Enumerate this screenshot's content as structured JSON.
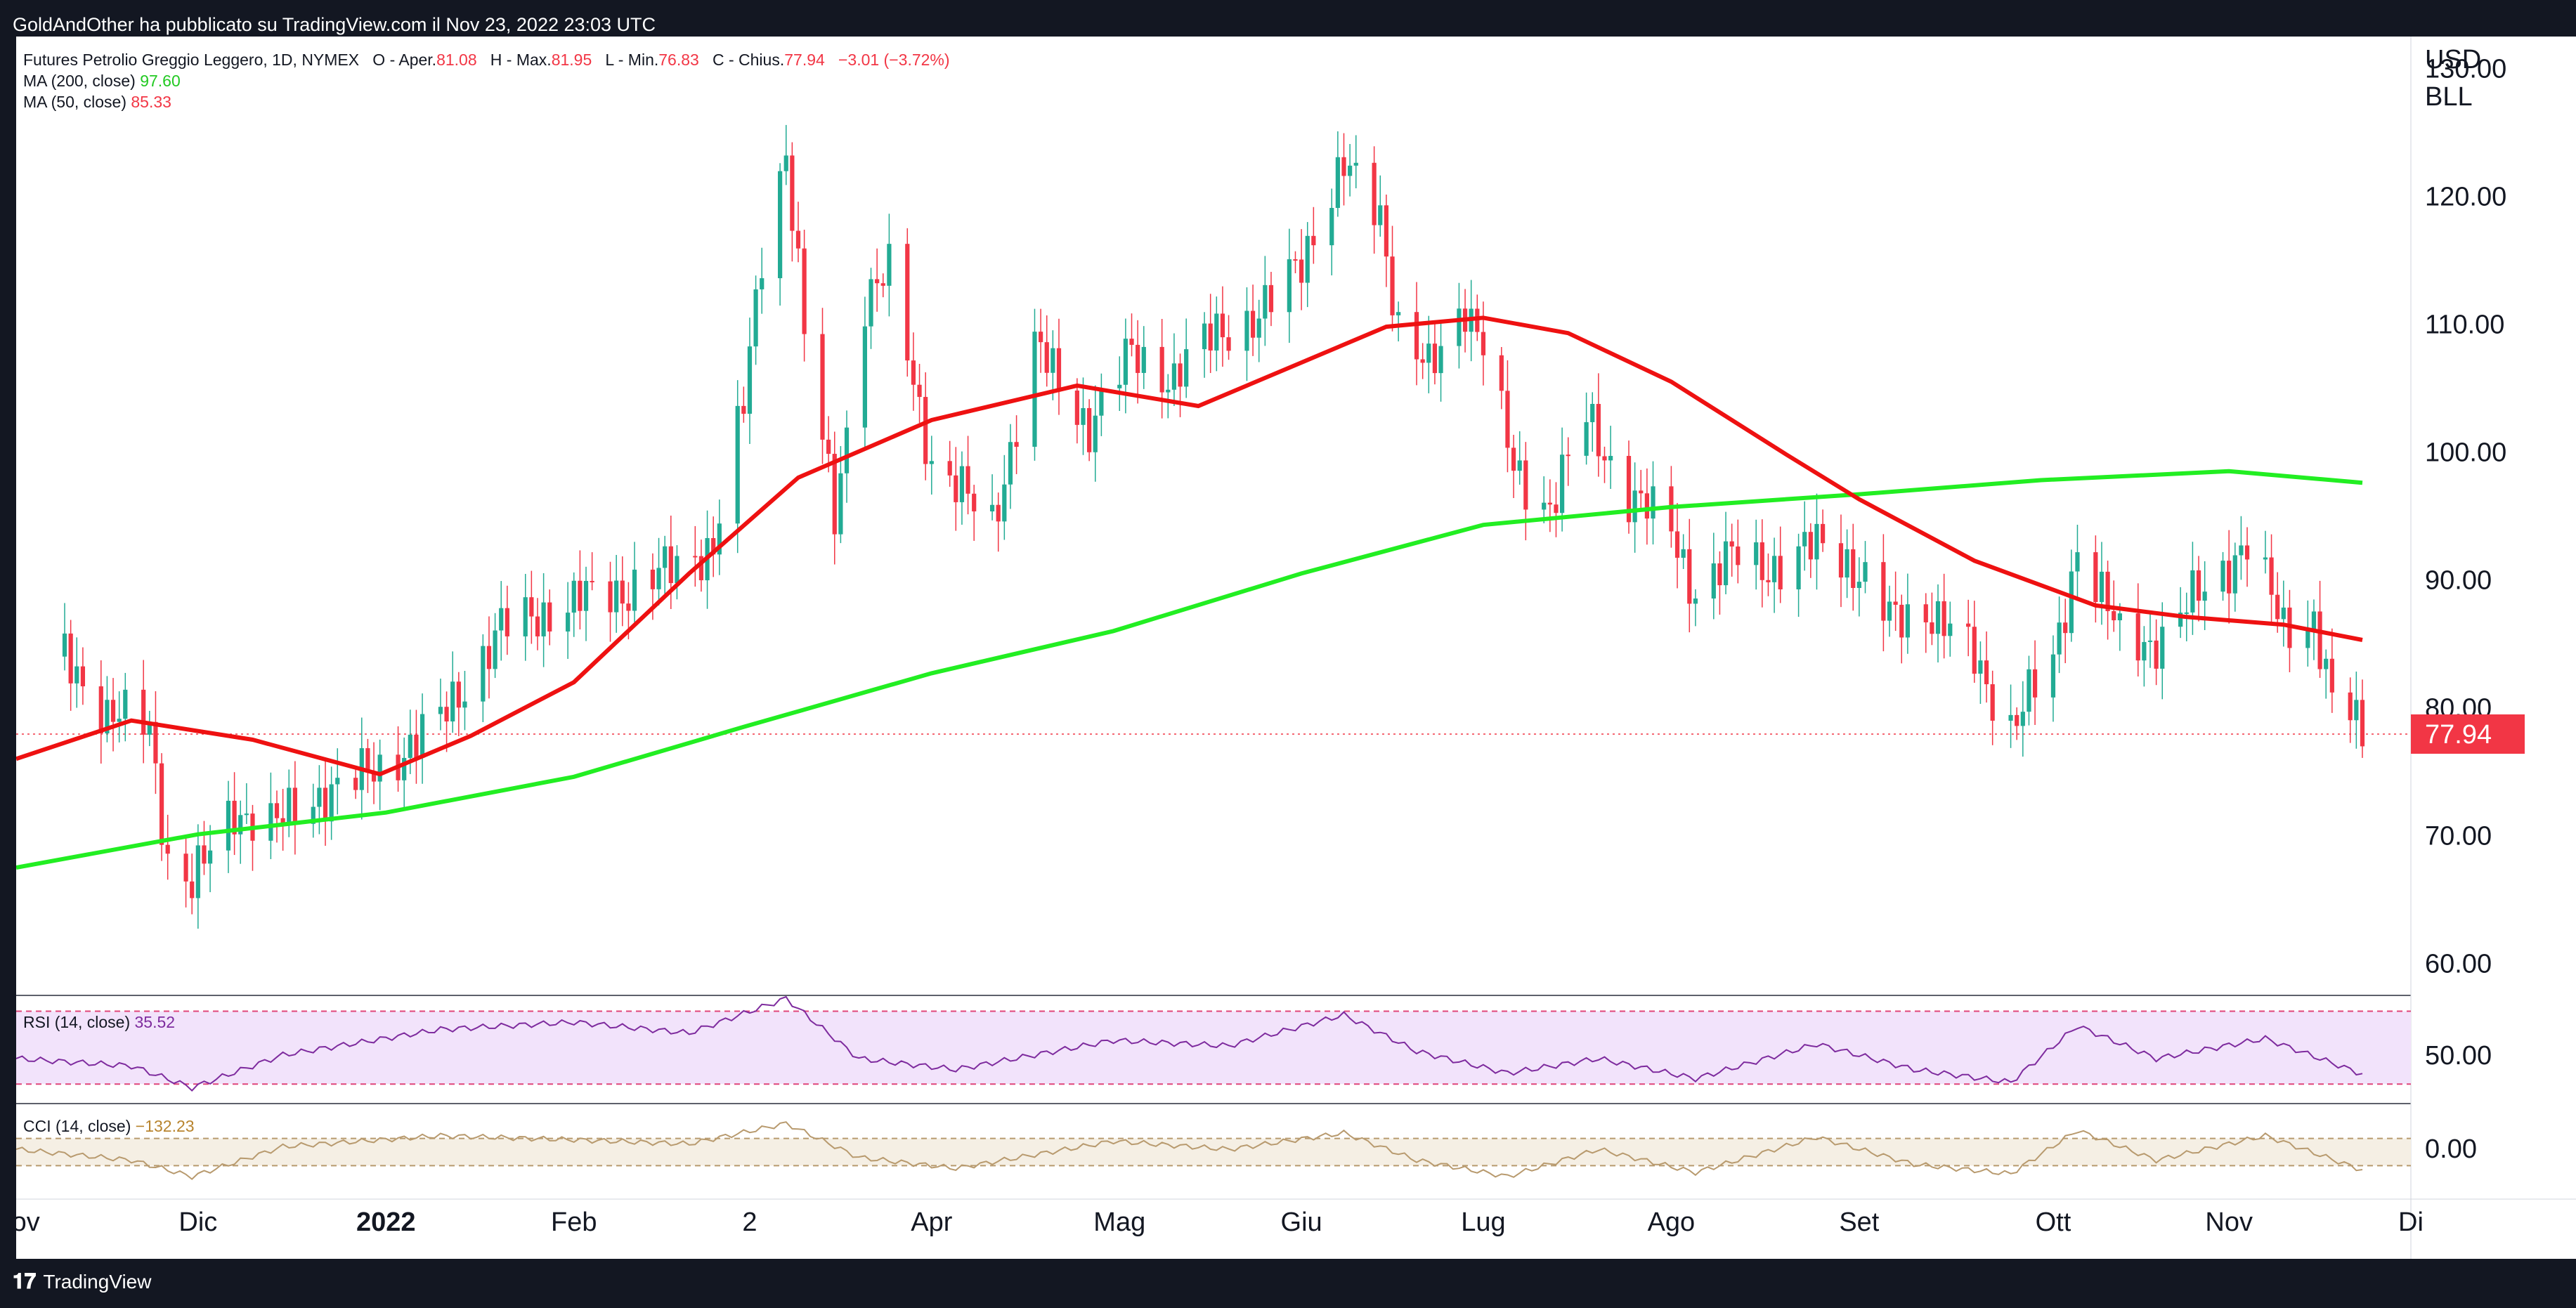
{
  "header": {
    "publish_line": "GoldAndOther ha pubblicato su TradingView.com il Nov 23, 2022 23:03 UTC"
  },
  "footer": {
    "brand": "TradingView",
    "logo_glyph": "𝟏𝟕"
  },
  "legend": {
    "symbol_line": "Futures Petrolio Greggio Leggero, 1D, NYMEX",
    "o_label": "O - Aper.",
    "o_value": "81.08",
    "h_label": "H - Max.",
    "h_value": "81.95",
    "l_label": "L - Min.",
    "l_value": "76.83",
    "c_label": "C - Chius.",
    "c_value": "77.94",
    "change": "−3.01 (−3.72%)",
    "ma200_label": "MA (200, close)",
    "ma200_value": "97.60",
    "ma50_label": "MA (50, close)",
    "ma50_value": "85.33",
    "rsi_label": "RSI (14, close)",
    "rsi_value": "35.52",
    "cci_label": "CCI (14, close)",
    "cci_value": "−132.23"
  },
  "colors": {
    "up": "#22ab94",
    "down": "#f23645",
    "ma200": "#22ee22",
    "ma50": "#ee1111",
    "rsi_line": "#7e2b9e",
    "rsi_band": "#f2e3fb",
    "cci_line": "#b89a6e",
    "cci_band": "#f5efe4",
    "price_tag": "#f23645"
  },
  "chart_data": {
    "type": "candlestick",
    "title": "Futures Petrolio Greggio Leggero, 1D, NYMEX",
    "price_axis_unit": "USD BLL",
    "price_axis_unit_lines": [
      "USD",
      "BLL"
    ],
    "price_ticks": [
      "130.00",
      "120.00",
      "110.00",
      "100.00",
      "90.00",
      "80.00",
      "70.00",
      "60.00"
    ],
    "ylim": [
      57.5,
      132.5
    ],
    "last_price": 77.94,
    "last_price_label": "77.94",
    "time_labels": [
      {
        "label": "Nov",
        "date": "2021-11-01",
        "bold": false
      },
      {
        "label": "Dic",
        "date": "2021-12-01",
        "bold": false
      },
      {
        "label": "2022",
        "date": "2022-01-01",
        "bold": true
      },
      {
        "label": "Feb",
        "date": "2022-02-01",
        "bold": false
      },
      {
        "label": "2",
        "date": "2022-03-02",
        "bold": false
      },
      {
        "label": "Apr",
        "date": "2022-04-01",
        "bold": false
      },
      {
        "label": "Mag",
        "date": "2022-05-02",
        "bold": false
      },
      {
        "label": "Giu",
        "date": "2022-06-01",
        "bold": false
      },
      {
        "label": "Lug",
        "date": "2022-07-01",
        "bold": false
      },
      {
        "label": "Ago",
        "date": "2022-08-01",
        "bold": false
      },
      {
        "label": "Set",
        "date": "2022-09-01",
        "bold": false
      },
      {
        "label": "Ott",
        "date": "2022-10-03",
        "bold": false
      },
      {
        "label": "Nov",
        "date": "2022-11-01",
        "bold": false
      },
      {
        "label": "Di",
        "date": "2022-12-01",
        "bold": false
      }
    ],
    "x_range": [
      "2021-11-01",
      "2022-12-01"
    ],
    "close_series": {
      "dates": [
        "2021-11-09",
        "2021-11-16",
        "2021-11-23",
        "2021-11-26",
        "2021-11-30",
        "2021-12-07",
        "2021-12-14",
        "2021-12-21",
        "2021-12-31",
        "2022-01-10",
        "2022-01-20",
        "2022-02-01",
        "2022-02-10",
        "2022-02-18",
        "2022-02-24",
        "2022-03-01",
        "2022-03-04",
        "2022-03-08",
        "2022-03-11",
        "2022-03-16",
        "2022-03-21",
        "2022-03-25",
        "2022-04-01",
        "2022-04-11",
        "2022-04-18",
        "2022-04-27",
        "2022-05-04",
        "2022-05-11",
        "2022-05-18",
        "2022-05-25",
        "2022-06-01",
        "2022-06-08",
        "2022-06-14",
        "2022-06-17",
        "2022-06-22",
        "2022-06-28",
        "2022-07-01",
        "2022-07-06",
        "2022-07-12",
        "2022-07-18",
        "2022-07-25",
        "2022-08-01",
        "2022-08-05",
        "2022-08-12",
        "2022-08-19",
        "2022-08-26",
        "2022-08-30",
        "2022-09-06",
        "2022-09-12",
        "2022-09-20",
        "2022-09-26",
        "2022-10-03",
        "2022-10-07",
        "2022-10-14",
        "2022-10-21",
        "2022-10-27",
        "2022-11-04",
        "2022-11-10",
        "2022-11-15",
        "2022-11-18",
        "2022-11-21",
        "2022-11-23"
      ],
      "values": [
        84.0,
        79.5,
        78.5,
        68.2,
        66.2,
        72.0,
        70.9,
        73.2,
        75.2,
        79.0,
        86.2,
        88.3,
        89.3,
        91.0,
        92.8,
        103.5,
        115.7,
        123.7,
        109.3,
        95.0,
        112.1,
        113.9,
        99.3,
        94.3,
        108.2,
        102.0,
        107.8,
        105.7,
        109.6,
        110.3,
        115.3,
        122.1,
        118.9,
        109.6,
        106.2,
        111.8,
        108.4,
        98.5,
        95.8,
        102.6,
        96.7,
        93.9,
        89.0,
        92.1,
        90.8,
        93.1,
        91.6,
        86.9,
        87.8,
        83.9,
        78.5,
        83.6,
        92.6,
        85.6,
        85.1,
        89.1,
        92.6,
        86.5,
        86.9,
        80.1,
        79.7,
        77.9
      ]
    },
    "ma200_series": {
      "dates": [
        "2021-11-01",
        "2021-12-01",
        "2022-01-01",
        "2022-02-01",
        "2022-03-01",
        "2022-04-01",
        "2022-05-01",
        "2022-06-01",
        "2022-07-01",
        "2022-08-01",
        "2022-09-01",
        "2022-10-01",
        "2022-11-01",
        "2022-11-23"
      ],
      "values": [
        67.5,
        70.1,
        71.8,
        74.6,
        78.5,
        82.7,
        86.0,
        90.5,
        94.3,
        95.7,
        96.7,
        97.8,
        98.5,
        97.6
      ]
    },
    "ma50_series": {
      "dates": [
        "2021-11-01",
        "2021-11-20",
        "2021-12-10",
        "2021-12-31",
        "2022-01-15",
        "2022-02-01",
        "2022-02-20",
        "2022-03-10",
        "2022-04-01",
        "2022-04-25",
        "2022-05-15",
        "2022-06-01",
        "2022-06-15",
        "2022-07-01",
        "2022-07-15",
        "2022-08-01",
        "2022-08-20",
        "2022-09-01",
        "2022-09-20",
        "2022-10-10",
        "2022-10-25",
        "2022-11-10",
        "2022-11-23"
      ],
      "values": [
        76.0,
        79.0,
        77.5,
        74.8,
        77.8,
        82.0,
        90.5,
        98.0,
        102.5,
        105.2,
        103.6,
        107.0,
        109.8,
        110.5,
        109.3,
        105.5,
        99.8,
        96.3,
        91.5,
        88.0,
        87.1,
        86.5,
        85.3
      ]
    },
    "rsi": {
      "label": "RSI (14, close)",
      "value": 35.52,
      "tick": "50.00",
      "band": [
        30,
        70
      ],
      "ylim": [
        22,
        76
      ],
      "dates": [
        "2021-11-01",
        "2021-11-20",
        "2021-11-30",
        "2021-12-15",
        "2022-01-10",
        "2022-02-01",
        "2022-02-20",
        "2022-03-08",
        "2022-03-20",
        "2022-04-05",
        "2022-05-01",
        "2022-05-20",
        "2022-06-08",
        "2022-06-20",
        "2022-07-05",
        "2022-07-20",
        "2022-08-05",
        "2022-08-25",
        "2022-09-10",
        "2022-09-26",
        "2022-10-07",
        "2022-10-20",
        "2022-11-07",
        "2022-11-23"
      ],
      "values": [
        44,
        40,
        28,
        46,
        60,
        64,
        58,
        77,
        44,
        38,
        54,
        51,
        68,
        48,
        36,
        44,
        33,
        52,
        38,
        31,
        62,
        44,
        55,
        35.5
      ]
    },
    "cci": {
      "label": "CCI (14, close)",
      "value": -132.23,
      "tick": "0.00",
      "band": [
        -100,
        100
      ],
      "ylim": [
        -320,
        320
      ],
      "dates": [
        "2021-11-01",
        "2021-11-20",
        "2021-11-30",
        "2021-12-15",
        "2022-01-10",
        "2022-02-01",
        "2022-02-20",
        "2022-03-08",
        "2022-03-20",
        "2022-04-05",
        "2022-05-01",
        "2022-05-20",
        "2022-06-08",
        "2022-06-20",
        "2022-07-05",
        "2022-07-20",
        "2022-08-05",
        "2022-08-25",
        "2022-09-10",
        "2022-09-26",
        "2022-10-07",
        "2022-10-20",
        "2022-11-07",
        "2022-11-23"
      ],
      "values": [
        20,
        -60,
        -180,
        40,
        120,
        90,
        60,
        210,
        -40,
        -120,
        80,
        20,
        140,
        -60,
        -180,
        20,
        -150,
        110,
        -90,
        -160,
        160,
        -60,
        120,
        -132
      ]
    }
  }
}
